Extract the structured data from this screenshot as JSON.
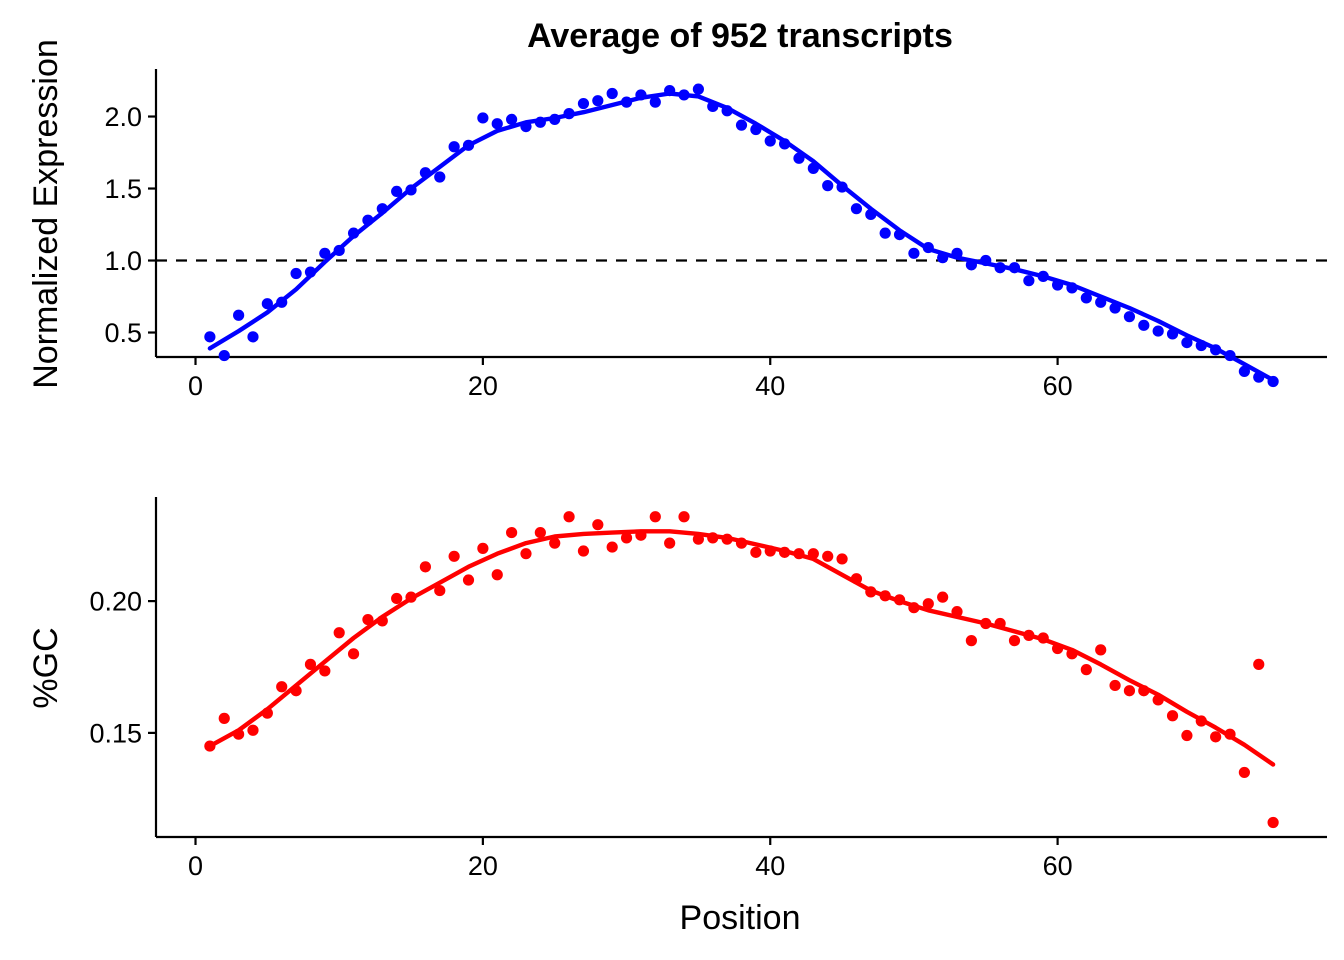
{
  "chart_data": [
    {
      "type": "scatter",
      "title": "Average of 952 transcripts",
      "ylabel": "Normalized Expression",
      "xlabel": "",
      "xlim": [
        -2.75,
        78.75
      ],
      "ylim": [
        0.33,
        2.33
      ],
      "xticks": [
        0,
        20,
        40,
        60
      ],
      "yticks": [
        0.5,
        1.0,
        1.5,
        2.0
      ],
      "ytick_labels": [
        "0.5",
        "1.0",
        "1.5",
        "2.0"
      ],
      "reference_line": {
        "y": 1.0,
        "style": "dashed",
        "color": "#000000"
      },
      "grid": false,
      "color": "#0000ff",
      "x": [
        1,
        2,
        3,
        4,
        5,
        6,
        7,
        8,
        9,
        10,
        11,
        12,
        13,
        14,
        15,
        16,
        17,
        18,
        19,
        20,
        21,
        22,
        23,
        24,
        25,
        26,
        27,
        28,
        29,
        30,
        31,
        32,
        33,
        34,
        35,
        36,
        37,
        38,
        39,
        40,
        41,
        42,
        43,
        44,
        45,
        46,
        47,
        48,
        49,
        50,
        51,
        52,
        53,
        54,
        55,
        56,
        57,
        58,
        59,
        60,
        61,
        62,
        63,
        64,
        65,
        66,
        67,
        68,
        69,
        70,
        71,
        72,
        73,
        74,
        75
      ],
      "y": [
        0.47,
        0.34,
        0.62,
        0.47,
        0.7,
        0.71,
        0.91,
        0.92,
        1.05,
        1.07,
        1.19,
        1.28,
        1.36,
        1.48,
        1.49,
        1.61,
        1.58,
        1.79,
        1.8,
        1.99,
        1.95,
        1.98,
        1.93,
        1.96,
        1.98,
        2.02,
        2.09,
        2.11,
        2.16,
        2.1,
        2.15,
        2.1,
        2.18,
        2.15,
        2.19,
        2.07,
        2.04,
        1.94,
        1.91,
        1.83,
        1.81,
        1.71,
        1.64,
        1.52,
        1.51,
        1.36,
        1.32,
        1.19,
        1.18,
        1.05,
        1.09,
        1.02,
        1.05,
        0.97,
        1.0,
        0.95,
        0.95,
        0.86,
        0.89,
        0.83,
        0.81,
        0.74,
        0.71,
        0.67,
        0.61,
        0.55,
        0.51,
        0.49,
        0.43,
        0.41,
        0.38,
        0.34,
        0.23,
        0.19,
        0.16
      ],
      "smooth_x": [
        1,
        3,
        5,
        7,
        9,
        11,
        13,
        15,
        17,
        19,
        21,
        23,
        25,
        27,
        29,
        31,
        33,
        35,
        37,
        39,
        41,
        43,
        45,
        47,
        49,
        51,
        53,
        55,
        57,
        59,
        61,
        63,
        65,
        67,
        69,
        71,
        73,
        75
      ],
      "smooth_y": [
        0.39,
        0.51,
        0.64,
        0.8,
        0.99,
        1.17,
        1.33,
        1.5,
        1.65,
        1.8,
        1.9,
        1.96,
        1.99,
        2.03,
        2.08,
        2.13,
        2.16,
        2.14,
        2.06,
        1.95,
        1.83,
        1.69,
        1.52,
        1.36,
        1.21,
        1.08,
        1.02,
        0.98,
        0.94,
        0.89,
        0.83,
        0.75,
        0.67,
        0.58,
        0.48,
        0.39,
        0.28,
        0.17
      ]
    },
    {
      "type": "scatter",
      "title": "",
      "ylabel": "%GC",
      "xlabel": "Position",
      "xlim": [
        -2.75,
        78.75
      ],
      "ylim": [
        0.1105,
        0.2395
      ],
      "xticks": [
        0,
        20,
        40,
        60
      ],
      "yticks": [
        0.15,
        0.2
      ],
      "ytick_labels": [
        "0.15",
        "0.20"
      ],
      "grid": false,
      "color": "#ff0000",
      "x": [
        1,
        2,
        3,
        4,
        5,
        6,
        7,
        8,
        9,
        10,
        11,
        12,
        13,
        14,
        15,
        16,
        17,
        18,
        19,
        20,
        21,
        22,
        23,
        24,
        25,
        26,
        27,
        28,
        29,
        30,
        31,
        32,
        33,
        34,
        35,
        36,
        37,
        38,
        39,
        40,
        41,
        42,
        43,
        44,
        45,
        46,
        47,
        48,
        49,
        50,
        51,
        52,
        53,
        54,
        55,
        56,
        57,
        58,
        59,
        60,
        61,
        62,
        63,
        64,
        65,
        66,
        67,
        68,
        69,
        70,
        71,
        72,
        73,
        74,
        75
      ],
      "y": [
        0.145,
        0.1555,
        0.1495,
        0.151,
        0.1575,
        0.1675,
        0.166,
        0.176,
        0.1735,
        0.188,
        0.18,
        0.193,
        0.1925,
        0.201,
        0.2015,
        0.213,
        0.204,
        0.217,
        0.208,
        0.22,
        0.21,
        0.226,
        0.218,
        0.226,
        0.222,
        0.232,
        0.219,
        0.229,
        0.2205,
        0.224,
        0.225,
        0.232,
        0.222,
        0.232,
        0.2235,
        0.224,
        0.2235,
        0.222,
        0.2185,
        0.219,
        0.2185,
        0.218,
        0.218,
        0.217,
        0.216,
        0.2085,
        0.2035,
        0.202,
        0.2005,
        0.1975,
        0.199,
        0.2015,
        0.196,
        0.185,
        0.1915,
        0.1915,
        0.185,
        0.187,
        0.186,
        0.182,
        0.18,
        0.174,
        0.1815,
        0.168,
        0.166,
        0.166,
        0.1625,
        0.1565,
        0.149,
        0.1545,
        0.1485,
        0.1495,
        0.135,
        0.176,
        0.116
      ],
      "smooth_x": [
        1,
        3,
        5,
        7,
        9,
        11,
        13,
        15,
        17,
        19,
        21,
        23,
        25,
        27,
        29,
        31,
        33,
        35,
        37,
        39,
        41,
        43,
        45,
        47,
        49,
        51,
        53,
        55,
        57,
        59,
        61,
        63,
        65,
        67,
        69,
        71,
        73,
        75
      ],
      "smooth_y": [
        0.145,
        0.151,
        0.159,
        0.168,
        0.177,
        0.186,
        0.194,
        0.201,
        0.207,
        0.213,
        0.218,
        0.222,
        0.2245,
        0.2255,
        0.226,
        0.2265,
        0.2265,
        0.2255,
        0.224,
        0.2215,
        0.219,
        0.216,
        0.21,
        0.204,
        0.2,
        0.1965,
        0.194,
        0.1915,
        0.1885,
        0.1855,
        0.1815,
        0.176,
        0.17,
        0.1645,
        0.158,
        0.152,
        0.1455,
        0.138
      ]
    }
  ]
}
